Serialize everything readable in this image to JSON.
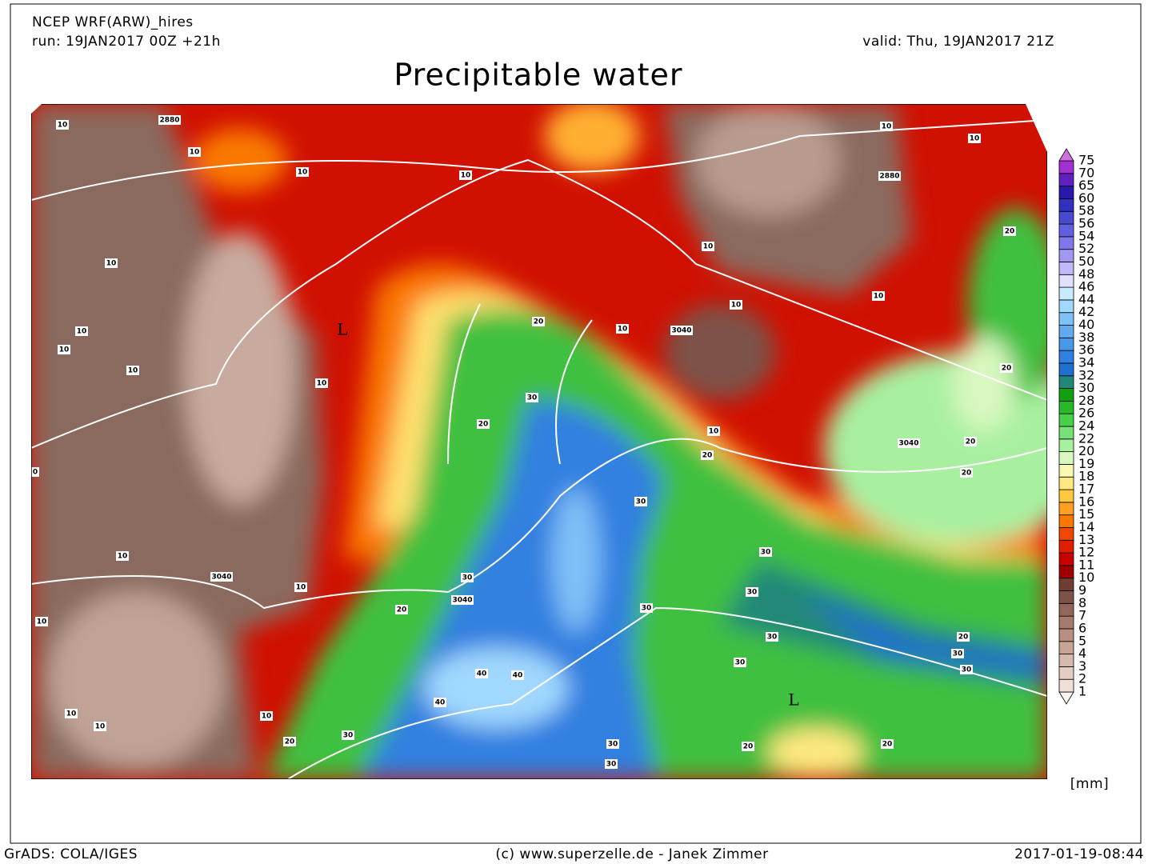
{
  "header": {
    "model": "NCEP WRF(ARW)_hires",
    "run": "run: 19JAN2017 00Z +21h",
    "valid": "valid: Thu, 19JAN2017 21Z",
    "title": "Precipitable water"
  },
  "colorbar": {
    "levels": [
      1,
      2,
      3,
      4,
      5,
      6,
      7,
      8,
      9,
      10,
      11,
      12,
      13,
      14,
      15,
      16,
      17,
      18,
      19,
      20,
      22,
      24,
      26,
      28,
      30,
      32,
      34,
      36,
      38,
      40,
      42,
      44,
      46,
      48,
      50,
      52,
      54,
      56,
      58,
      60,
      65,
      70,
      75
    ],
    "colors": [
      "#fdf5ef",
      "#f0e0d8",
      "#e4cdc4",
      "#d6b9ae",
      "#c8a497",
      "#b88f82",
      "#a67a6e",
      "#93665b",
      "#7d5249",
      "#6e3e35",
      "#a00000",
      "#c80000",
      "#e01e00",
      "#f04800",
      "#fa7800",
      "#ffa020",
      "#ffc840",
      "#ffe880",
      "#f8f8b0",
      "#d8f8c0",
      "#a8f0a0",
      "#78e078",
      "#48d048",
      "#28b828",
      "#10a010",
      "#208878",
      "#2070d0",
      "#3080e0",
      "#4898e8",
      "#60aaf0",
      "#80c0f8",
      "#a0d8ff",
      "#c8ecff",
      "#e0e0ff",
      "#c0b8f8",
      "#a098f0",
      "#8078e8",
      "#6060e0",
      "#4848d0",
      "#3030c0",
      "#2818a8",
      "#6020c0",
      "#a030d0",
      "#d070e0"
    ],
    "unit": "[mm]"
  },
  "map": {
    "contour_labels": [
      "10",
      "2880",
      "10",
      "10",
      "10",
      "10",
      "10",
      "2880",
      "20",
      "10",
      "10",
      "10",
      "3040",
      "10",
      "20",
      "10",
      "10",
      "10",
      "10",
      "L",
      "10",
      "30",
      "20",
      "20",
      "3040",
      "20",
      "10",
      "20",
      "20",
      "30",
      "10",
      "3040",
      "10",
      "30",
      "3040",
      "20",
      "30",
      "30",
      "30",
      "30",
      "20",
      "30",
      "30",
      "30",
      "10",
      "10",
      "10",
      "10",
      "20",
      "30",
      "40",
      "40",
      "40",
      "L",
      "20",
      "20",
      "30",
      "30",
      "0"
    ]
  },
  "footer": {
    "left": "GrADS: COLA/IGES",
    "center": "(c) www.superzelle.de - Janek Zimmer",
    "right": "2017-01-19-08:44"
  }
}
